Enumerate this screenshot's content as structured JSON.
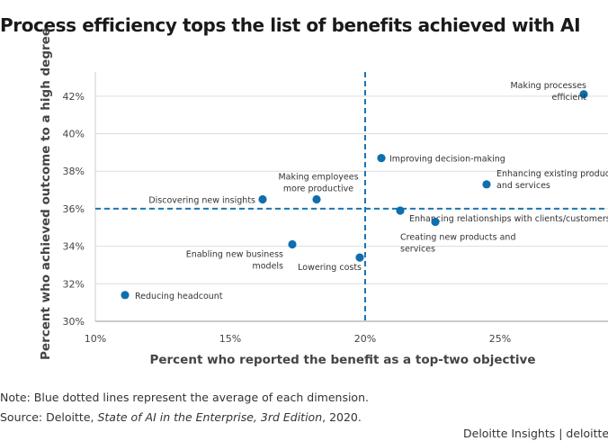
{
  "title": "Process efficiency tops the list of benefits achieved with AI",
  "note": "Note: Blue dotted lines represent the average of each dimension.",
  "source": {
    "prefix": "Source: Deloitte, ",
    "publication": "State of AI in the Enterprise, 3rd Edition",
    "suffix": ", 2020."
  },
  "brand": {
    "text": "Deloitte Insights | deloitte.c"
  },
  "colors": {
    "point": "#0f6fae",
    "avg_line": "#1b75b4",
    "grid": "#dddddd"
  },
  "chart_data": {
    "type": "scatter",
    "title": "Process efficiency tops the list of benefits achieved with AI",
    "xlabel": "Percent who reported the benefit as a top-two objective",
    "ylabel": "Percent who achieved outcome to a high degree",
    "xlim": [
      10,
      29
    ],
    "ylim": [
      30,
      43
    ],
    "x_ticks": [
      10,
      15,
      20,
      25
    ],
    "x_tick_labels": [
      "10%",
      "15%",
      "20%",
      "25%"
    ],
    "y_ticks": [
      30,
      32,
      34,
      36,
      38,
      40,
      42
    ],
    "y_tick_labels": [
      "30%",
      "32%",
      "34%",
      "36%",
      "38%",
      "40%",
      "42%"
    ],
    "grid": true,
    "avg_x": 20,
    "avg_y": 36,
    "points": [
      {
        "label": [
          "Making processes",
          "efficient"
        ],
        "x": 28.1,
        "y": 42.1
      },
      {
        "label": [
          "Improving decision-making"
        ],
        "x": 20.6,
        "y": 38.7
      },
      {
        "label": [
          "Enhancing existing products",
          "and services"
        ],
        "x": 24.5,
        "y": 37.3
      },
      {
        "label": [
          "Discovering new insights"
        ],
        "x": 16.2,
        "y": 36.5
      },
      {
        "label": [
          "Making employees",
          "more productive"
        ],
        "x": 18.2,
        "y": 36.5
      },
      {
        "label": [
          "Enhancing relationships with clients/customers"
        ],
        "x": 21.3,
        "y": 35.9
      },
      {
        "label": [
          "Creating new products and",
          "services"
        ],
        "x": 22.6,
        "y": 35.3
      },
      {
        "label": [
          "Enabling new business",
          "models"
        ],
        "x": 17.3,
        "y": 34.1
      },
      {
        "label": [
          "Lowering costs"
        ],
        "x": 19.8,
        "y": 33.4
      },
      {
        "label": [
          "Reducing headcount"
        ],
        "x": 11.1,
        "y": 31.4
      }
    ]
  }
}
